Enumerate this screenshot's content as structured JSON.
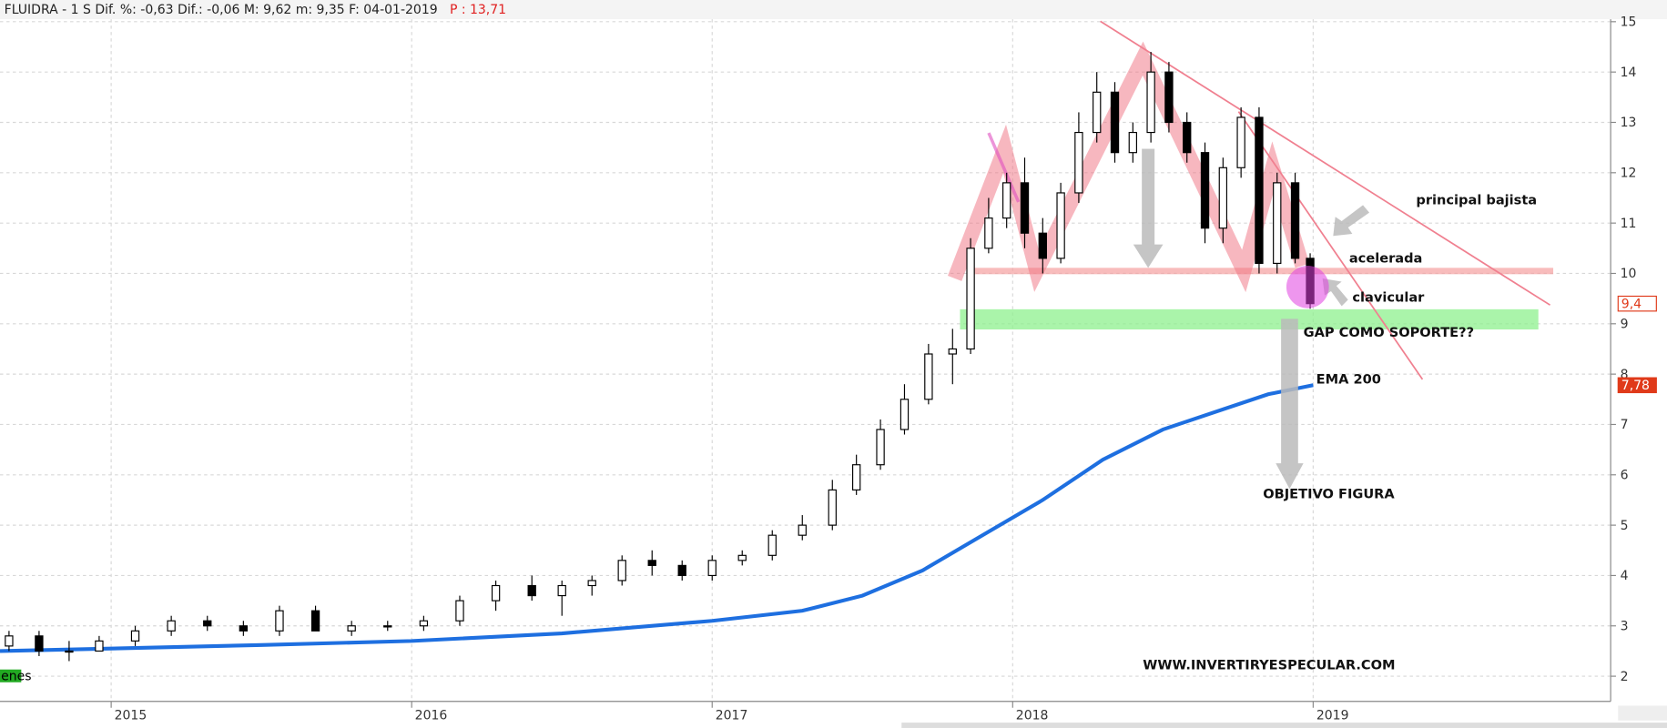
{
  "header": {
    "text": "FLUIDRA -  1 S Dif. %: -0,63 Dif.: -0,06 M: 9,62 m: 9,35 F: 04-01-2019",
    "price": "P : 13,71"
  },
  "chart_data": {
    "type": "candlestick",
    "x": [
      2014.66,
      2014.76,
      2014.86,
      2014.96,
      2015.08,
      2015.2,
      2015.32,
      2015.44,
      2015.56,
      2015.68,
      2015.8,
      2015.92,
      2016.04,
      2016.16,
      2016.28,
      2016.4,
      2016.5,
      2016.6,
      2016.7,
      2016.8,
      2016.9,
      2017.0,
      2017.1,
      2017.2,
      2017.3,
      2017.4,
      2017.48,
      2017.56,
      2017.64,
      2017.72,
      2017.8,
      2017.86,
      2017.92,
      2017.98,
      2018.04,
      2018.1,
      2018.16,
      2018.22,
      2018.28,
      2018.34,
      2018.4,
      2018.46,
      2018.52,
      2018.58,
      2018.64,
      2018.7,
      2018.76,
      2018.82,
      2018.88,
      2018.94,
      2018.99
    ],
    "open": [
      2.6,
      2.8,
      2.5,
      2.5,
      2.7,
      2.9,
      3.1,
      3.0,
      2.9,
      3.3,
      2.9,
      3.0,
      3.0,
      3.1,
      3.5,
      3.8,
      3.6,
      3.8,
      3.9,
      4.3,
      4.2,
      4.0,
      4.3,
      4.4,
      4.8,
      5.0,
      5.7,
      6.2,
      6.9,
      7.5,
      8.4,
      8.5,
      10.5,
      11.1,
      11.8,
      10.8,
      10.3,
      11.6,
      12.8,
      13.6,
      12.4,
      12.8,
      14.0,
      13.0,
      12.4,
      10.9,
      12.1,
      13.1,
      10.2,
      11.8,
      10.3
    ],
    "high": [
      2.9,
      2.9,
      2.7,
      2.8,
      3.0,
      3.2,
      3.2,
      3.1,
      3.4,
      3.4,
      3.1,
      3.1,
      3.2,
      3.6,
      3.9,
      4.0,
      3.9,
      4.0,
      4.4,
      4.5,
      4.3,
      4.4,
      4.5,
      4.9,
      5.2,
      5.9,
      6.4,
      7.1,
      7.8,
      8.6,
      8.9,
      10.7,
      11.5,
      12.0,
      12.3,
      11.1,
      11.8,
      13.2,
      14.0,
      13.8,
      13.0,
      14.4,
      14.2,
      13.2,
      12.6,
      12.3,
      13.3,
      13.3,
      12.0,
      12.0,
      10.4
    ],
    "low": [
      2.5,
      2.4,
      2.3,
      2.5,
      2.6,
      2.8,
      2.9,
      2.8,
      2.8,
      2.9,
      2.8,
      2.9,
      2.9,
      3.0,
      3.3,
      3.5,
      3.2,
      3.6,
      3.8,
      4.0,
      3.9,
      3.9,
      4.2,
      4.3,
      4.7,
      4.9,
      5.6,
      6.1,
      6.8,
      7.4,
      7.8,
      8.4,
      10.4,
      10.9,
      10.5,
      10.0,
      10.2,
      11.4,
      12.6,
      12.2,
      12.2,
      12.6,
      12.8,
      12.2,
      10.6,
      10.6,
      11.9,
      10.0,
      10.0,
      10.2,
      9.3
    ],
    "close": [
      2.8,
      2.5,
      2.5,
      2.7,
      2.9,
      3.1,
      3.0,
      2.9,
      3.3,
      2.9,
      3.0,
      3.0,
      3.1,
      3.5,
      3.8,
      3.6,
      3.8,
      3.9,
      4.3,
      4.2,
      4.0,
      4.3,
      4.4,
      4.8,
      5.0,
      5.7,
      6.2,
      6.9,
      7.5,
      8.4,
      8.5,
      10.5,
      11.1,
      11.8,
      10.8,
      10.3,
      11.6,
      12.8,
      13.6,
      12.4,
      12.8,
      14.0,
      13.0,
      12.4,
      10.9,
      12.1,
      13.1,
      10.2,
      11.8,
      10.3,
      9.4
    ],
    "ema": {
      "name": "EMA 200",
      "color": "#1e6fe0",
      "x": [
        2014.63,
        2015.0,
        2015.5,
        2016.0,
        2016.5,
        2017.0,
        2017.3,
        2017.5,
        2017.7,
        2017.9,
        2018.1,
        2018.3,
        2018.5,
        2018.7,
        2018.85,
        2019.0
      ],
      "values": [
        2.5,
        2.55,
        2.62,
        2.7,
        2.85,
        3.1,
        3.3,
        3.6,
        4.1,
        4.8,
        5.5,
        6.3,
        6.9,
        7.3,
        7.6,
        7.78
      ]
    },
    "xlim": [
      2014.63,
      2019.99
    ],
    "xticks": [
      2015,
      2016,
      2017,
      2018,
      2019
    ],
    "ylim": [
      1.5,
      15.05
    ],
    "yticks": [
      2,
      3,
      4,
      5,
      6,
      7,
      8,
      9,
      10,
      11,
      12,
      13,
      14,
      15
    ],
    "price_labels": [
      {
        "value": 9.4,
        "label": "9,4"
      },
      {
        "value": 7.78,
        "label": "7,78"
      }
    ],
    "grid": true,
    "annotations": [
      "principal bajista",
      "acelerada",
      "clavicular",
      "GAP COMO SOPORTE??",
      "EMA 200",
      "OBJETIVO FIGURA",
      "WWW.INVERTIRYESPECULAR.COM",
      "enes"
    ]
  }
}
